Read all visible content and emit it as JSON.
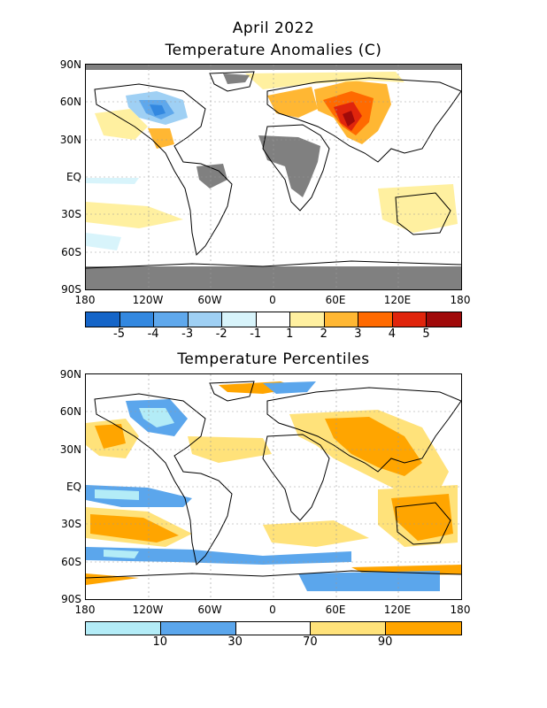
{
  "header": {
    "month_title": "April 2022",
    "anomaly_title": "Temperature Anomalies (C)",
    "percentile_title": "Temperature Percentiles"
  },
  "axes": {
    "lat_labels": [
      "90N",
      "60N",
      "30N",
      "EQ",
      "30S",
      "60S",
      "90S"
    ],
    "lon_labels": [
      "180",
      "120W",
      "60W",
      "0",
      "60E",
      "120E",
      "180"
    ]
  },
  "anomaly_legend": {
    "labels": [
      "-5",
      "-4",
      "-3",
      "-2",
      "-1",
      "1",
      "2",
      "3",
      "4",
      "5"
    ],
    "colors": [
      "#1565c8",
      "#3388e0",
      "#5fa8ec",
      "#9fd0f4",
      "#d8f4fb",
      "#ffffff",
      "#fff0a0",
      "#ffb733",
      "#ff6a00",
      "#e0250c",
      "#a00a0a"
    ]
  },
  "percentile_legend": {
    "labels": [
      "10",
      "30",
      "70",
      "90"
    ],
    "colors": [
      "#b3ecf7",
      "#5ba6ec",
      "#ffffff",
      "#ffe27a",
      "#ffa500"
    ]
  },
  "chart_data": [
    {
      "type": "heatmap",
      "title": "Temperature Anomalies (C)",
      "subtitle": "April 2022",
      "x_range": [
        "180",
        "180"
      ],
      "y_range": [
        "90S",
        "90N"
      ],
      "missing_data_color": "#808080",
      "notable_regions": [
        {
          "region": "Western/Central Asia",
          "anomaly_range": "+3 to +5"
        },
        {
          "region": "Central Canada",
          "anomaly_range": "-2 to -4"
        },
        {
          "region": "Eastern Europe",
          "anomaly_range": "+1 to +3"
        },
        {
          "region": "Antarctica",
          "anomaly_range": "no data"
        }
      ]
    },
    {
      "type": "heatmap",
      "title": "Temperature Percentiles",
      "x_range": [
        "180",
        "180"
      ],
      "y_range": [
        "90S",
        "90N"
      ],
      "notable_regions": [
        {
          "region": "Central Canada",
          "percentile": "below 10"
        },
        {
          "region": "Asia",
          "percentile": "above 70 to above 90"
        },
        {
          "region": "South Pacific",
          "percentile": "above 90"
        },
        {
          "region": "Southern Ocean",
          "percentile": "below 30"
        }
      ]
    }
  ]
}
